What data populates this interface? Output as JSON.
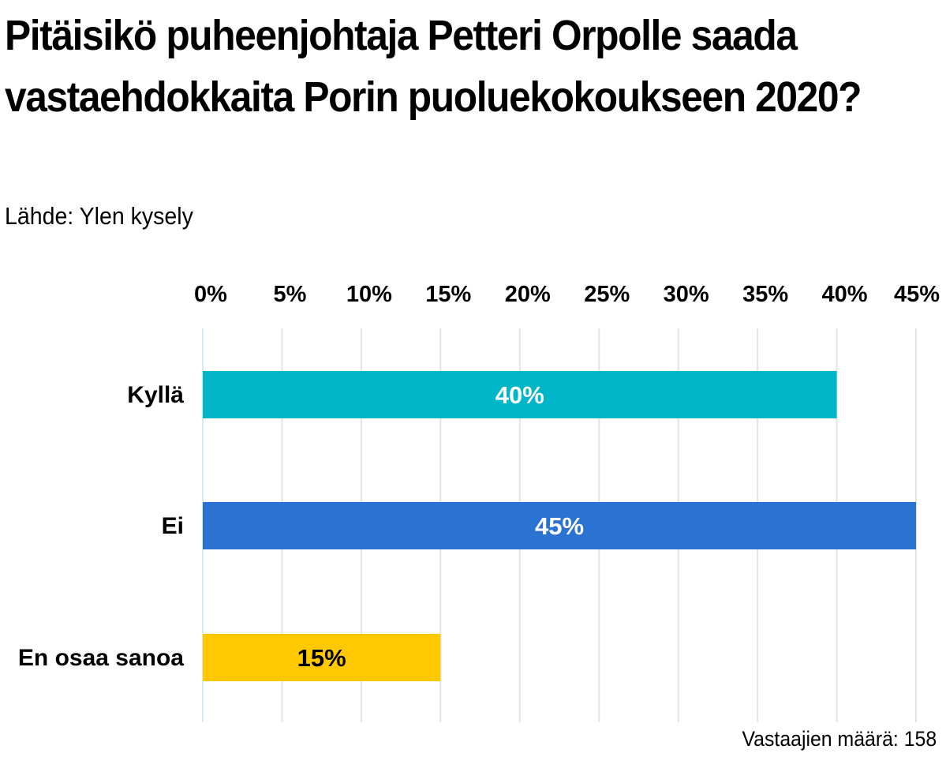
{
  "chart_data": {
    "type": "bar",
    "orientation": "horizontal",
    "title": "Pitäisikö puheenjohtaja Petteri Orpolle saada vastaehdokkaita Porin puoluekokoukseen 2020?",
    "subtitle": "Lähde: Ylen kysely",
    "categories": [
      "Kyllä",
      "Ei",
      "En osaa sanoa"
    ],
    "values": [
      40,
      45,
      15
    ],
    "value_labels": [
      "40%",
      "45%",
      "15%"
    ],
    "bar_colors": [
      "#00b5c8",
      "#2b73d3",
      "#ffc800"
    ],
    "value_label_colors": [
      "#ffffff",
      "#ffffff",
      "#000000"
    ],
    "xlim": [
      0,
      45
    ],
    "x_ticks": [
      0,
      5,
      10,
      15,
      20,
      25,
      30,
      35,
      40,
      45
    ],
    "x_tick_labels": [
      "0%",
      "5%",
      "10%",
      "15%",
      "20%",
      "25%",
      "30%",
      "35%",
      "40%",
      "45%"
    ],
    "axis_position": "top",
    "grid": true,
    "legend": "none",
    "footnote": "Vastaajien määrä: 158"
  }
}
